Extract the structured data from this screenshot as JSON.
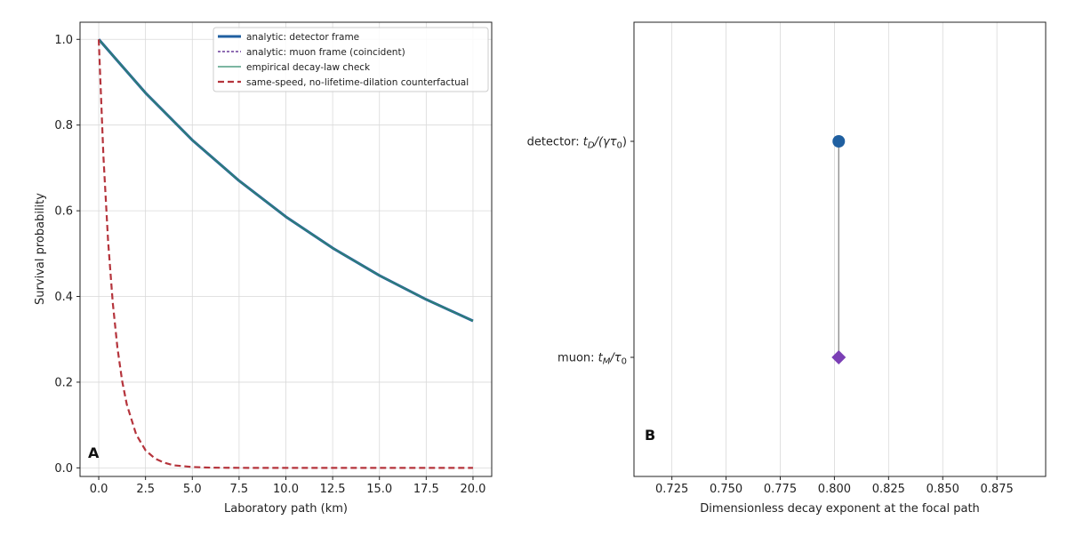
{
  "chart_data": [
    {
      "type": "line",
      "panel_label": "A",
      "xlabel": "Laboratory path (km)",
      "ylabel": "Survival probability",
      "xlim": [
        -1,
        21
      ],
      "ylim": [
        -0.02,
        1.04
      ],
      "x_ticks": [
        "0.0",
        "2.5",
        "5.0",
        "7.5",
        "10.0",
        "12.5",
        "15.0",
        "17.5",
        "20.0"
      ],
      "y_ticks": [
        "0.0",
        "0.2",
        "0.4",
        "0.6",
        "0.8",
        "1.0"
      ],
      "grid": true,
      "legend_position": "top-right",
      "series": [
        {
          "name": "analytic: detector frame",
          "color": "#1f5fa0",
          "style": "solid-thick",
          "x": [
            0,
            2.5,
            5,
            7.5,
            10,
            12.5,
            15,
            17.5,
            20
          ],
          "y": [
            1.0,
            0.875,
            0.765,
            0.67,
            0.586,
            0.513,
            0.449,
            0.393,
            0.343
          ]
        },
        {
          "name": "analytic: muon frame (coincident)",
          "color": "#6a3d9a",
          "style": "dotted",
          "x": [
            0,
            2.5,
            5,
            7.5,
            10,
            12.5,
            15,
            17.5,
            20
          ],
          "y": [
            1.0,
            0.875,
            0.765,
            0.67,
            0.586,
            0.513,
            0.449,
            0.393,
            0.343
          ]
        },
        {
          "name": "empirical decay-law check",
          "color": "#2e8a6b",
          "style": "solid-thin",
          "x": [
            0,
            2.5,
            5,
            7.5,
            10,
            12.5,
            15,
            17.5,
            20
          ],
          "y": [
            1.0,
            0.875,
            0.765,
            0.67,
            0.586,
            0.513,
            0.449,
            0.393,
            0.343
          ]
        },
        {
          "name": "same-speed, no-lifetime-dilation counterfactual",
          "color": "#b5343c",
          "style": "dashed",
          "x": [
            0,
            0.25,
            0.5,
            0.75,
            1.0,
            1.25,
            1.5,
            2.0,
            2.5,
            3.0,
            3.5,
            4.0,
            5.0,
            6.0,
            8.0,
            10,
            12.5,
            15,
            17.5,
            20
          ],
          "y": [
            1.0,
            0.727,
            0.529,
            0.385,
            0.28,
            0.203,
            0.148,
            0.078,
            0.041,
            0.022,
            0.012,
            0.006,
            0.002,
            0.0005,
            0.0,
            0.0,
            0.0,
            0.0,
            0.0,
            0.0
          ]
        }
      ]
    },
    {
      "type": "scatter",
      "panel_label": "B",
      "xlabel": "Dimensionless decay exponent at the focal path",
      "xlim": [
        0.7075,
        0.8975
      ],
      "x_ticks": [
        "0.725",
        "0.750",
        "0.775",
        "0.800",
        "0.825",
        "0.850",
        "0.875"
      ],
      "categories": [
        "detector: t_D/(γτ₀)",
        "muon: t_M/τ₀"
      ],
      "category_labels": [
        {
          "prefix": "detector: ",
          "main1": "t",
          "sub1": "D",
          "mid": "/(γτ",
          "sub2": "0",
          "suffix": ")"
        },
        {
          "prefix": "muon: ",
          "main1": "t",
          "sub1": "M",
          "mid": "/τ",
          "sub2": "0",
          "suffix": ""
        }
      ],
      "grid": "x",
      "points": [
        {
          "category": "detector",
          "value": 0.802,
          "color": "#1f5fa0",
          "marker": "circle"
        },
        {
          "category": "muon",
          "value": 0.802,
          "color": "#7b3fb5",
          "marker": "diamond"
        }
      ]
    }
  ]
}
